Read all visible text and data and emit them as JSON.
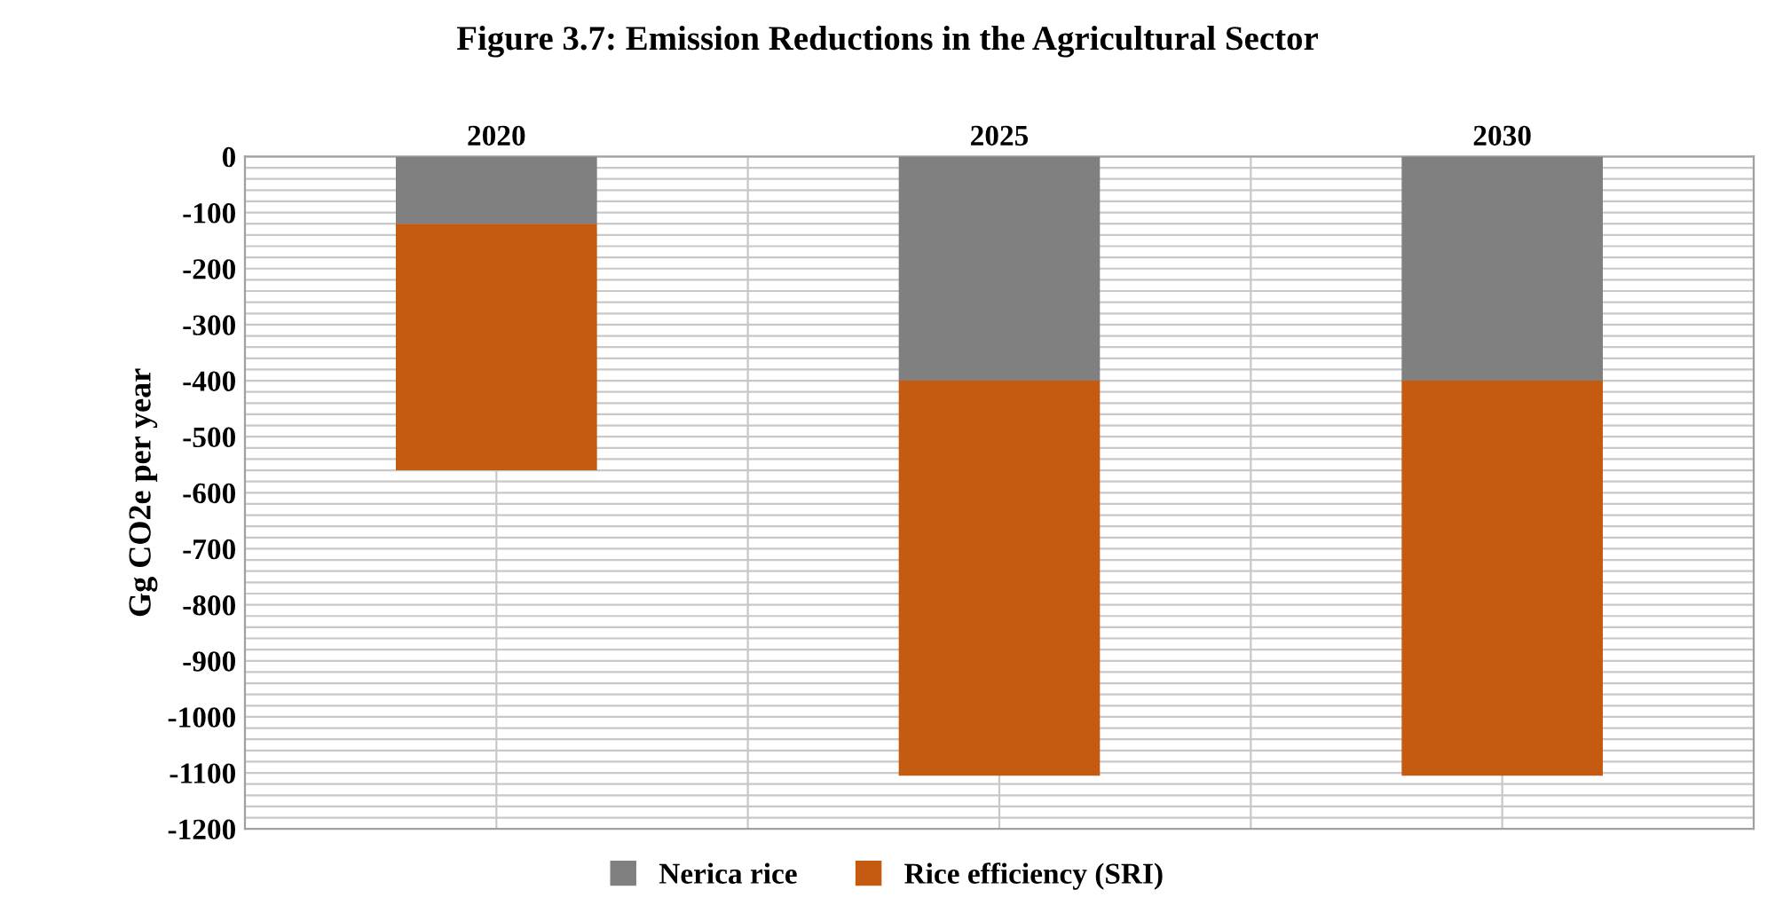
{
  "chart_data": {
    "type": "bar",
    "title": "Figure 3.7: Emission Reductions in the Agricultural Sector",
    "ylabel": "Gg CO2e per year",
    "categories": [
      "2020",
      "2025",
      "2030"
    ],
    "stacked": true,
    "series": [
      {
        "name": "Nerica rice",
        "color": "#808080",
        "values": [
          -120,
          -400,
          -400
        ]
      },
      {
        "name": "Rice efficiency (SRI)",
        "color": "#c55a11",
        "values": [
          -440,
          -705,
          -705
        ]
      }
    ],
    "ylim": [
      -1200,
      0
    ],
    "yticks": [
      0,
      {
        "value": -20,
        "label": null
      },
      {
        "value": -40,
        "label": null
      },
      {
        "value": -60,
        "label": null
      },
      {
        "value": -80,
        "label": null
      },
      -100,
      {
        "value": -120,
        "label": null
      },
      {
        "value": -140,
        "label": null
      },
      {
        "value": -160,
        "label": null
      },
      {
        "value": -180,
        "label": null
      },
      -200,
      {
        "value": -220,
        "label": null
      },
      {
        "value": -240,
        "label": null
      },
      {
        "value": -260,
        "label": null
      },
      {
        "value": -280,
        "label": null
      },
      -300,
      {
        "value": -320,
        "label": null
      },
      {
        "value": -340,
        "label": null
      },
      {
        "value": -360,
        "label": null
      },
      {
        "value": -380,
        "label": null
      },
      -400,
      {
        "value": -420,
        "label": null
      },
      {
        "value": -440,
        "label": null
      },
      {
        "value": -460,
        "label": null
      },
      {
        "value": -480,
        "label": null
      },
      -500,
      {
        "value": -520,
        "label": null
      },
      {
        "value": -540,
        "label": null
      },
      {
        "value": -560,
        "label": null
      },
      {
        "value": -580,
        "label": null
      },
      -600,
      {
        "value": -620,
        "label": null
      },
      {
        "value": -640,
        "label": null
      },
      {
        "value": -660,
        "label": null
      },
      {
        "value": -680,
        "label": null
      },
      -700,
      {
        "value": -720,
        "label": null
      },
      {
        "value": -740,
        "label": null
      },
      {
        "value": -760,
        "label": null
      },
      {
        "value": -780,
        "label": null
      },
      -800,
      {
        "value": -820,
        "label": null
      },
      {
        "value": -840,
        "label": null
      },
      {
        "value": -860,
        "label": null
      },
      {
        "value": -880,
        "label": null
      },
      -900,
      {
        "value": -920,
        "label": null
      },
      {
        "value": -940,
        "label": null
      },
      {
        "value": -960,
        "label": null
      },
      {
        "value": -980,
        "label": null
      },
      -1000,
      {
        "value": -1020,
        "label": null
      },
      {
        "value": -1040,
        "label": null
      },
      {
        "value": -1060,
        "label": null
      },
      {
        "value": -1080,
        "label": null
      },
      -1100,
      {
        "value": -1120,
        "label": null
      },
      {
        "value": -1140,
        "label": null
      },
      {
        "value": -1160,
        "label": null
      },
      {
        "value": -1180,
        "label": null
      },
      -1200
    ],
    "grid": true,
    "legend": "bottom"
  }
}
